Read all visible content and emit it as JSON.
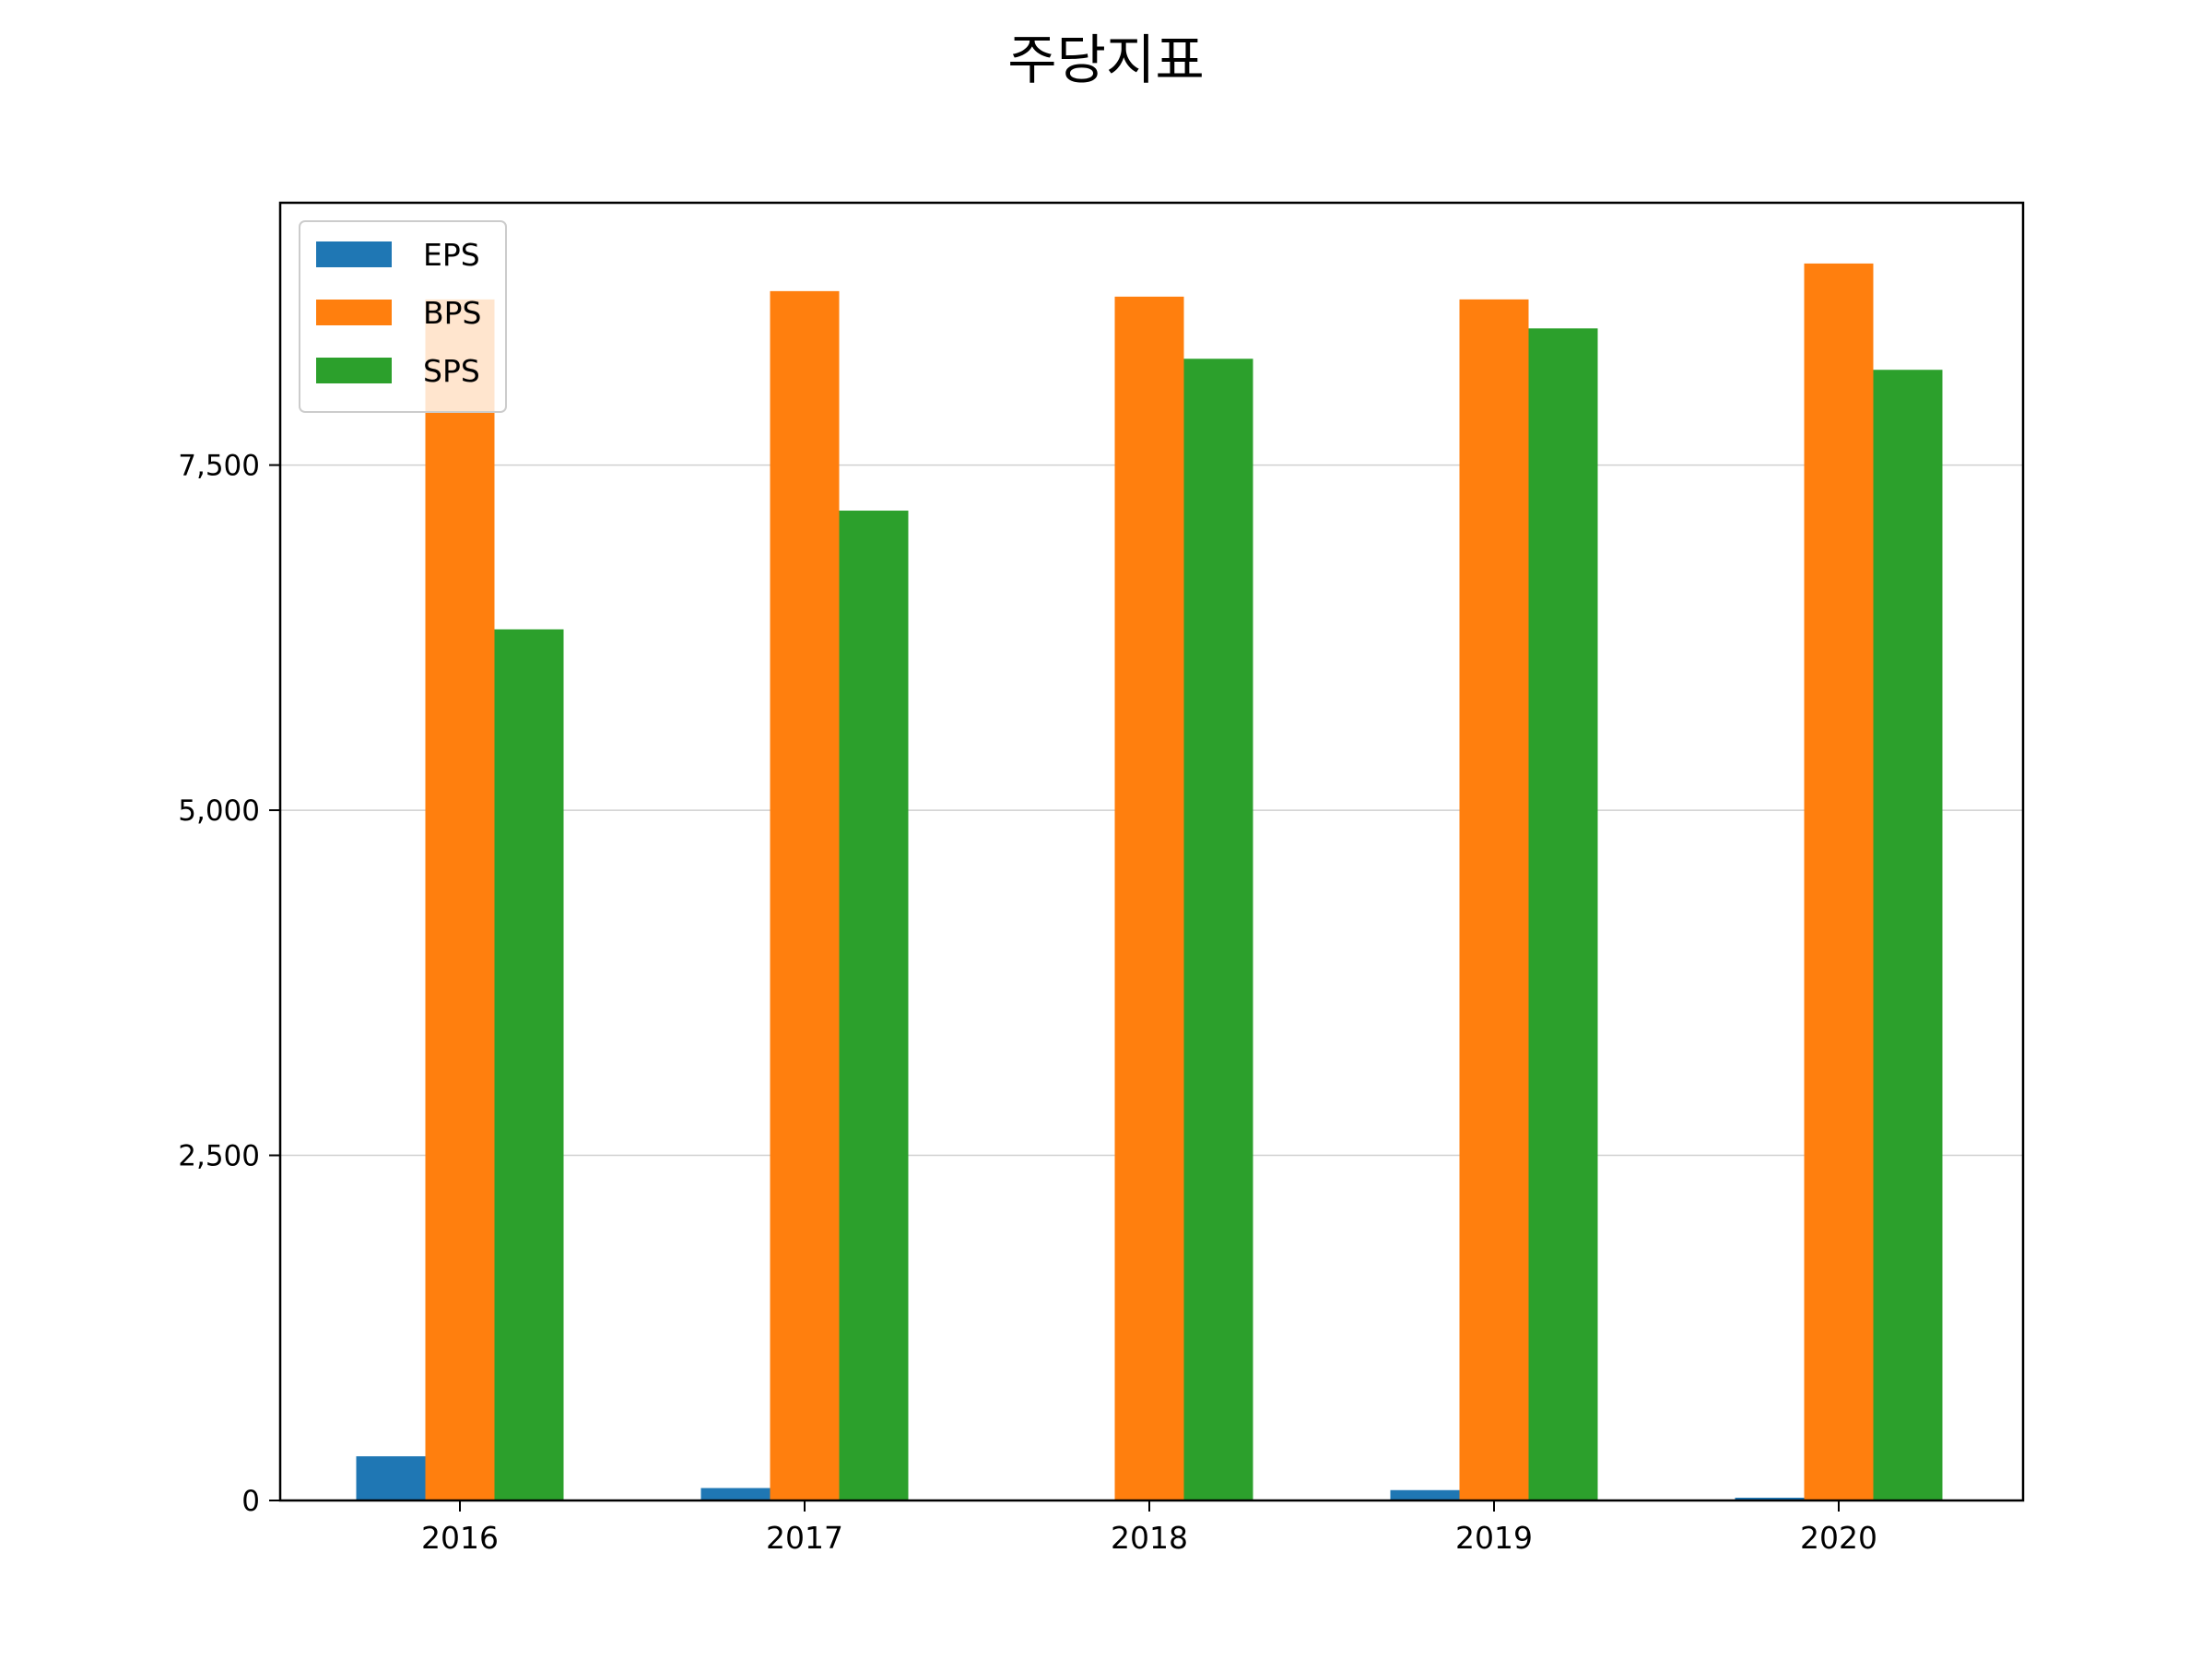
{
  "chart_data": {
    "type": "bar",
    "title": "주당지표",
    "xlabel": "",
    "ylabel": "",
    "categories": [
      "2016",
      "2017",
      "2018",
      "2019",
      "2020"
    ],
    "series": [
      {
        "name": "EPS",
        "color": "#1f77b4",
        "values": [
          320,
          90,
          0,
          75,
          20
        ]
      },
      {
        "name": "BPS",
        "color": "#ff7f0e",
        "values": [
          8700,
          8760,
          8720,
          8700,
          8960
        ]
      },
      {
        "name": "SPS",
        "color": "#2ca02c",
        "values": [
          6310,
          7170,
          8270,
          8490,
          8190
        ]
      }
    ],
    "yticks": [
      {
        "value": 0,
        "label": "0"
      },
      {
        "value": 2500,
        "label": "2,500"
      },
      {
        "value": 5000,
        "label": "5,000"
      },
      {
        "value": 7500,
        "label": "7,500"
      }
    ],
    "ylim": [
      0,
      9400
    ],
    "grid": "horizontal",
    "legend": "top-left"
  }
}
